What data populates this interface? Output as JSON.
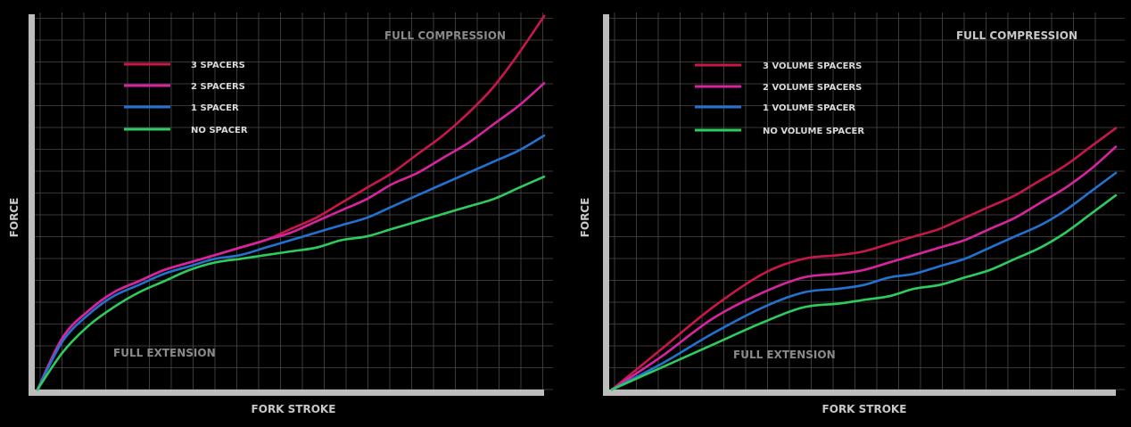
{
  "chart_data": [
    {
      "type": "line",
      "title": "",
      "xlabel": "FORK STROKE",
      "ylabel": "FORCE",
      "xlim": [
        0,
        100
      ],
      "ylim": [
        0,
        100
      ],
      "grid": true,
      "legend_position": "top-left",
      "annotations": {
        "start": "FULL EXTENSION",
        "end": "FULL COMPRESSION"
      },
      "series": [
        {
          "name": "3 SPACERS",
          "color": "#c8174a",
          "x": [
            0,
            5,
            10,
            15,
            20,
            25,
            30,
            35,
            40,
            45,
            50,
            55,
            60,
            65,
            70,
            75,
            80,
            85,
            90,
            95,
            100
          ],
          "y": [
            0,
            14,
            21,
            26,
            29,
            32,
            34,
            36,
            38,
            40,
            43,
            46,
            50,
            54,
            58,
            63,
            68,
            74,
            81,
            90,
            100
          ]
        },
        {
          "name": "2 SPACERS",
          "color": "#d8249f",
          "x": [
            0,
            5,
            10,
            15,
            20,
            25,
            30,
            35,
            40,
            45,
            50,
            55,
            60,
            65,
            70,
            75,
            80,
            85,
            90,
            95,
            100
          ],
          "y": [
            0,
            14,
            21,
            26,
            29,
            32,
            34,
            36,
            38,
            40,
            42,
            45,
            48,
            51,
            55,
            58,
            62,
            66,
            71,
            76,
            82
          ]
        },
        {
          "name": "1 SPACER",
          "color": "#2372cf",
          "x": [
            0,
            5,
            10,
            15,
            20,
            25,
            30,
            35,
            40,
            45,
            50,
            55,
            60,
            65,
            70,
            75,
            80,
            85,
            90,
            95,
            100
          ],
          "y": [
            0,
            13,
            20,
            25,
            28,
            31,
            33,
            35,
            36,
            38,
            40,
            42,
            44,
            46,
            49,
            52,
            55,
            58,
            61,
            64,
            68
          ]
        },
        {
          "name": "NO SPACER",
          "color": "#2ecc5f",
          "x": [
            0,
            5,
            10,
            15,
            20,
            25,
            30,
            35,
            40,
            45,
            50,
            55,
            60,
            65,
            70,
            75,
            80,
            85,
            90,
            95,
            100
          ],
          "y": [
            0,
            10,
            17,
            22,
            26,
            29,
            32,
            34,
            35,
            36,
            37,
            38,
            40,
            41,
            43,
            45,
            47,
            49,
            51,
            54,
            57
          ]
        }
      ]
    },
    {
      "type": "line",
      "title": "",
      "xlabel": "FORK STROKE",
      "ylabel": "FORCE",
      "xlim": [
        0,
        100
      ],
      "ylim": [
        0,
        100
      ],
      "grid": true,
      "legend_position": "top-left",
      "annotations": {
        "start": "FULL EXTENSION",
        "end": "FULL COMPRESSION"
      },
      "series": [
        {
          "name": "3 VOLUME SPACERS",
          "color": "#c8174a",
          "x": [
            0,
            10,
            20,
            30,
            38,
            45,
            50,
            55,
            60,
            65,
            70,
            75,
            80,
            85,
            90,
            95,
            100
          ],
          "y": [
            0,
            11,
            22,
            31,
            35,
            36,
            37,
            39,
            41,
            43,
            46,
            49,
            52,
            56,
            60,
            65,
            70
          ]
        },
        {
          "name": "2 VOLUME SPACERS",
          "color": "#d8249f",
          "x": [
            0,
            10,
            20,
            30,
            38,
            45,
            50,
            55,
            60,
            65,
            70,
            75,
            80,
            85,
            90,
            95,
            100
          ],
          "y": [
            0,
            9,
            19,
            26,
            30,
            31,
            32,
            34,
            36,
            38,
            40,
            43,
            46,
            50,
            54,
            59,
            65
          ]
        },
        {
          "name": "1 VOLUME SPACER",
          "color": "#2372cf",
          "x": [
            0,
            10,
            20,
            30,
            38,
            45,
            50,
            55,
            60,
            65,
            70,
            75,
            80,
            85,
            90,
            95,
            100
          ],
          "y": [
            0,
            7,
            15,
            22,
            26,
            27,
            28,
            30,
            31,
            33,
            35,
            38,
            41,
            44,
            48,
            53,
            58
          ]
        },
        {
          "name": "NO VOLUME SPACER",
          "color": "#2ecc5f",
          "x": [
            0,
            10,
            20,
            30,
            38,
            45,
            50,
            55,
            60,
            65,
            70,
            75,
            80,
            85,
            90,
            95,
            100
          ],
          "y": [
            0,
            6,
            12,
            18,
            22,
            23,
            24,
            25,
            27,
            28,
            30,
            32,
            35,
            38,
            42,
            47,
            52
          ]
        }
      ]
    }
  ]
}
